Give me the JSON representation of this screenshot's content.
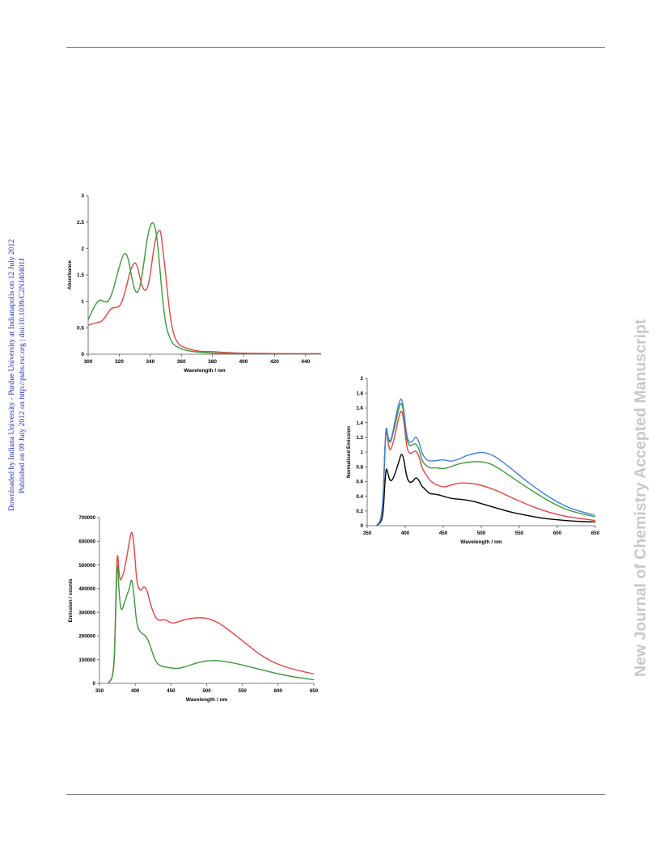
{
  "sidebar": {
    "left_line1": "Downloaded by Indiana University - Purdue University at Indianapolis on 12 July 2012",
    "left_line2": "Published on 09 July 2012 on http://pubs.rsc.org | doi:10.1039/C2NJ40401J",
    "left_color": "#1f2bbd",
    "right_text": "New Journal of Chemistry Accepted Manuscript",
    "right_color": "#c8c8c8"
  },
  "chart_data": [
    {
      "id": "absorbance",
      "type": "line",
      "xlabel": "Wavelength / nm",
      "ylabel": "Absorbance",
      "xlim": [
        300,
        450
      ],
      "ylim": [
        0,
        3
      ],
      "xticks": [
        300,
        320,
        340,
        360,
        380,
        400,
        420,
        440
      ],
      "yticks": [
        0,
        0.5,
        1,
        1.5,
        2,
        2.5,
        3
      ],
      "ytick_labels": [
        "0",
        "0.5",
        "1",
        "1.5",
        "2",
        "2.5",
        "3"
      ],
      "grid": false,
      "series": [
        {
          "color": "#e8433f",
          "x": [
            300,
            303,
            306,
            309,
            312,
            315,
            318,
            321,
            324,
            327,
            330,
            332,
            334,
            336,
            338,
            340,
            342,
            344,
            346,
            347,
            348,
            350,
            352,
            354,
            356,
            358,
            360,
            365,
            370,
            375,
            380,
            390,
            400,
            420,
            440,
            450
          ],
          "y": [
            0.55,
            0.58,
            0.6,
            0.62,
            0.75,
            0.88,
            0.88,
            0.92,
            1.2,
            1.58,
            1.76,
            1.65,
            1.35,
            1.2,
            1.22,
            1.5,
            1.95,
            2.28,
            2.36,
            2.28,
            2.0,
            1.5,
            0.9,
            0.5,
            0.3,
            0.2,
            0.15,
            0.1,
            0.06,
            0.05,
            0.05,
            0.03,
            0.02,
            0.01,
            0.01,
            0.01
          ]
        },
        {
          "color": "#3a9a3a",
          "x": [
            300,
            303,
            306,
            308,
            310,
            313,
            316,
            319,
            322,
            324,
            326,
            328,
            330,
            332,
            334,
            336,
            338,
            340,
            342,
            344,
            346,
            348,
            350,
            352,
            354,
            356,
            360,
            365,
            370,
            380,
            390,
            400,
            420,
            450
          ],
          "y": [
            0.65,
            0.85,
            1.0,
            1.03,
            1.0,
            0.98,
            1.2,
            1.55,
            1.85,
            1.93,
            1.8,
            1.45,
            1.2,
            1.15,
            1.35,
            1.75,
            2.2,
            2.45,
            2.51,
            2.3,
            1.7,
            1.0,
            0.55,
            0.35,
            0.22,
            0.16,
            0.1,
            0.06,
            0.04,
            0.02,
            0.01,
            0.01,
            0.0,
            0.0
          ]
        }
      ]
    },
    {
      "id": "normalised",
      "type": "line",
      "xlabel": "Wavelength / nm",
      "ylabel": "Normalised Emission",
      "xlim": [
        350,
        650
      ],
      "ylim": [
        0,
        2
      ],
      "xticks": [
        350,
        400,
        450,
        500,
        550,
        600,
        650
      ],
      "yticks": [
        0,
        0.2,
        0.4,
        0.6,
        0.8,
        1,
        1.2,
        1.4,
        1.6,
        1.8,
        2
      ],
      "ytick_labels": [
        "0",
        "0.2",
        "0.4",
        "0.6",
        "0.8",
        "1",
        "1.2",
        "1.4",
        "1.6",
        "1.8",
        "2"
      ],
      "grid": false,
      "series": [
        {
          "color": "#000000",
          "x": [
            362,
            365,
            368,
            371,
            373,
            375,
            377,
            380,
            384,
            388,
            392,
            395,
            398,
            402,
            406,
            410,
            414,
            418,
            422,
            426,
            430,
            434,
            440,
            450,
            460,
            470,
            480,
            490,
            500,
            520,
            540,
            560,
            580,
            600,
            620,
            650
          ],
          "y": [
            0,
            0.02,
            0.05,
            0.15,
            0.55,
            0.8,
            0.72,
            0.6,
            0.63,
            0.75,
            0.88,
            0.99,
            0.92,
            0.65,
            0.58,
            0.6,
            0.66,
            0.62,
            0.53,
            0.5,
            0.45,
            0.43,
            0.43,
            0.4,
            0.37,
            0.36,
            0.35,
            0.33,
            0.3,
            0.24,
            0.18,
            0.14,
            0.1,
            0.08,
            0.06,
            0.05
          ]
        },
        {
          "color": "#e8433f",
          "x": [
            362,
            365,
            368,
            371,
            373,
            375,
            377,
            380,
            384,
            388,
            392,
            395,
            398,
            402,
            406,
            410,
            414,
            418,
            422,
            426,
            430,
            434,
            440,
            450,
            460,
            470,
            480,
            490,
            500,
            520,
            540,
            560,
            580,
            600,
            620,
            650
          ],
          "y": [
            0,
            0.03,
            0.08,
            0.3,
            0.95,
            1.38,
            1.15,
            1.0,
            1.12,
            1.3,
            1.5,
            1.58,
            1.45,
            1.05,
            0.97,
            1.0,
            1.02,
            0.95,
            0.78,
            0.72,
            0.65,
            0.6,
            0.56,
            0.52,
            0.55,
            0.58,
            0.58,
            0.57,
            0.55,
            0.48,
            0.38,
            0.29,
            0.21,
            0.15,
            0.11,
            0.07
          ]
        },
        {
          "color": "#3a9a3a",
          "x": [
            362,
            365,
            368,
            371,
            373,
            375,
            377,
            380,
            384,
            388,
            392,
            395,
            398,
            402,
            406,
            410,
            414,
            418,
            422,
            426,
            430,
            434,
            440,
            450,
            460,
            470,
            480,
            490,
            500,
            510,
            520,
            540,
            560,
            580,
            600,
            620,
            650
          ],
          "y": [
            0,
            0.03,
            0.08,
            0.35,
            1.0,
            1.38,
            1.22,
            1.1,
            1.25,
            1.42,
            1.62,
            1.68,
            1.55,
            1.15,
            1.08,
            1.1,
            1.12,
            1.05,
            0.88,
            0.83,
            0.8,
            0.78,
            0.79,
            0.77,
            0.8,
            0.84,
            0.86,
            0.87,
            0.87,
            0.85,
            0.8,
            0.66,
            0.52,
            0.39,
            0.27,
            0.19,
            0.12
          ]
        },
        {
          "color": "#3f7fe0",
          "x": [
            362,
            365,
            368,
            371,
            373,
            375,
            377,
            380,
            384,
            388,
            392,
            395,
            398,
            402,
            406,
            410,
            414,
            418,
            422,
            426,
            430,
            434,
            440,
            450,
            460,
            470,
            480,
            490,
            500,
            510,
            520,
            540,
            560,
            580,
            600,
            620,
            650
          ],
          "y": [
            0,
            0.03,
            0.08,
            0.35,
            1.0,
            1.38,
            1.22,
            1.12,
            1.28,
            1.5,
            1.68,
            1.74,
            1.6,
            1.2,
            1.12,
            1.15,
            1.22,
            1.15,
            0.98,
            0.92,
            0.88,
            0.88,
            0.88,
            0.9,
            0.87,
            0.9,
            0.95,
            0.98,
            1.0,
            0.98,
            0.93,
            0.77,
            0.6,
            0.45,
            0.32,
            0.22,
            0.14
          ]
        }
      ]
    },
    {
      "id": "emission",
      "type": "line",
      "xlabel": "Wavelength / nm",
      "ylabel": "Emission / counts",
      "xlim": [
        350,
        650
      ],
      "ylim": [
        0,
        700000
      ],
      "xticks": [
        350,
        400,
        450,
        500,
        550,
        600,
        650
      ],
      "yticks": [
        0,
        100000,
        200000,
        300000,
        400000,
        500000,
        600000,
        700000
      ],
      "ytick_labels": [
        "0",
        "100000",
        "200000",
        "300000",
        "400000",
        "500000",
        "600000",
        "700000"
      ],
      "grid": false,
      "series": [
        {
          "color": "#e8433f",
          "x": [
            362,
            365,
            368,
            371,
            373,
            375,
            377,
            379,
            382,
            385,
            388,
            392,
            395,
            398,
            402,
            405,
            408,
            412,
            416,
            420,
            425,
            430,
            435,
            440,
            445,
            450,
            455,
            460,
            470,
            480,
            490,
            500,
            510,
            520,
            540,
            560,
            580,
            600,
            620,
            650
          ],
          "y": [
            0,
            10000,
            25000,
            100000,
            380000,
            570000,
            480000,
            430000,
            450000,
            480000,
            530000,
            600000,
            650000,
            600000,
            430000,
            400000,
            390000,
            410000,
            400000,
            350000,
            300000,
            270000,
            265000,
            270000,
            265000,
            255000,
            255000,
            260000,
            270000,
            275000,
            278000,
            275000,
            265000,
            250000,
            205000,
            155000,
            110000,
            80000,
            60000,
            40000
          ]
        },
        {
          "color": "#3a9a3a",
          "x": [
            362,
            365,
            368,
            371,
            373,
            375,
            377,
            380,
            384,
            388,
            392,
            395,
            398,
            402,
            406,
            410,
            415,
            420,
            425,
            430,
            435,
            440,
            450,
            460,
            470,
            480,
            490,
            500,
            510,
            520,
            540,
            560,
            580,
            600,
            620,
            650
          ],
          "y": [
            0,
            10000,
            25000,
            90000,
            350000,
            540000,
            400000,
            300000,
            330000,
            370000,
            400000,
            450000,
            380000,
            250000,
            220000,
            210000,
            200000,
            170000,
            120000,
            85000,
            75000,
            70000,
            65000,
            62000,
            70000,
            80000,
            90000,
            95000,
            97000,
            95000,
            85000,
            70000,
            55000,
            40000,
            28000,
            15000
          ]
        }
      ]
    }
  ]
}
